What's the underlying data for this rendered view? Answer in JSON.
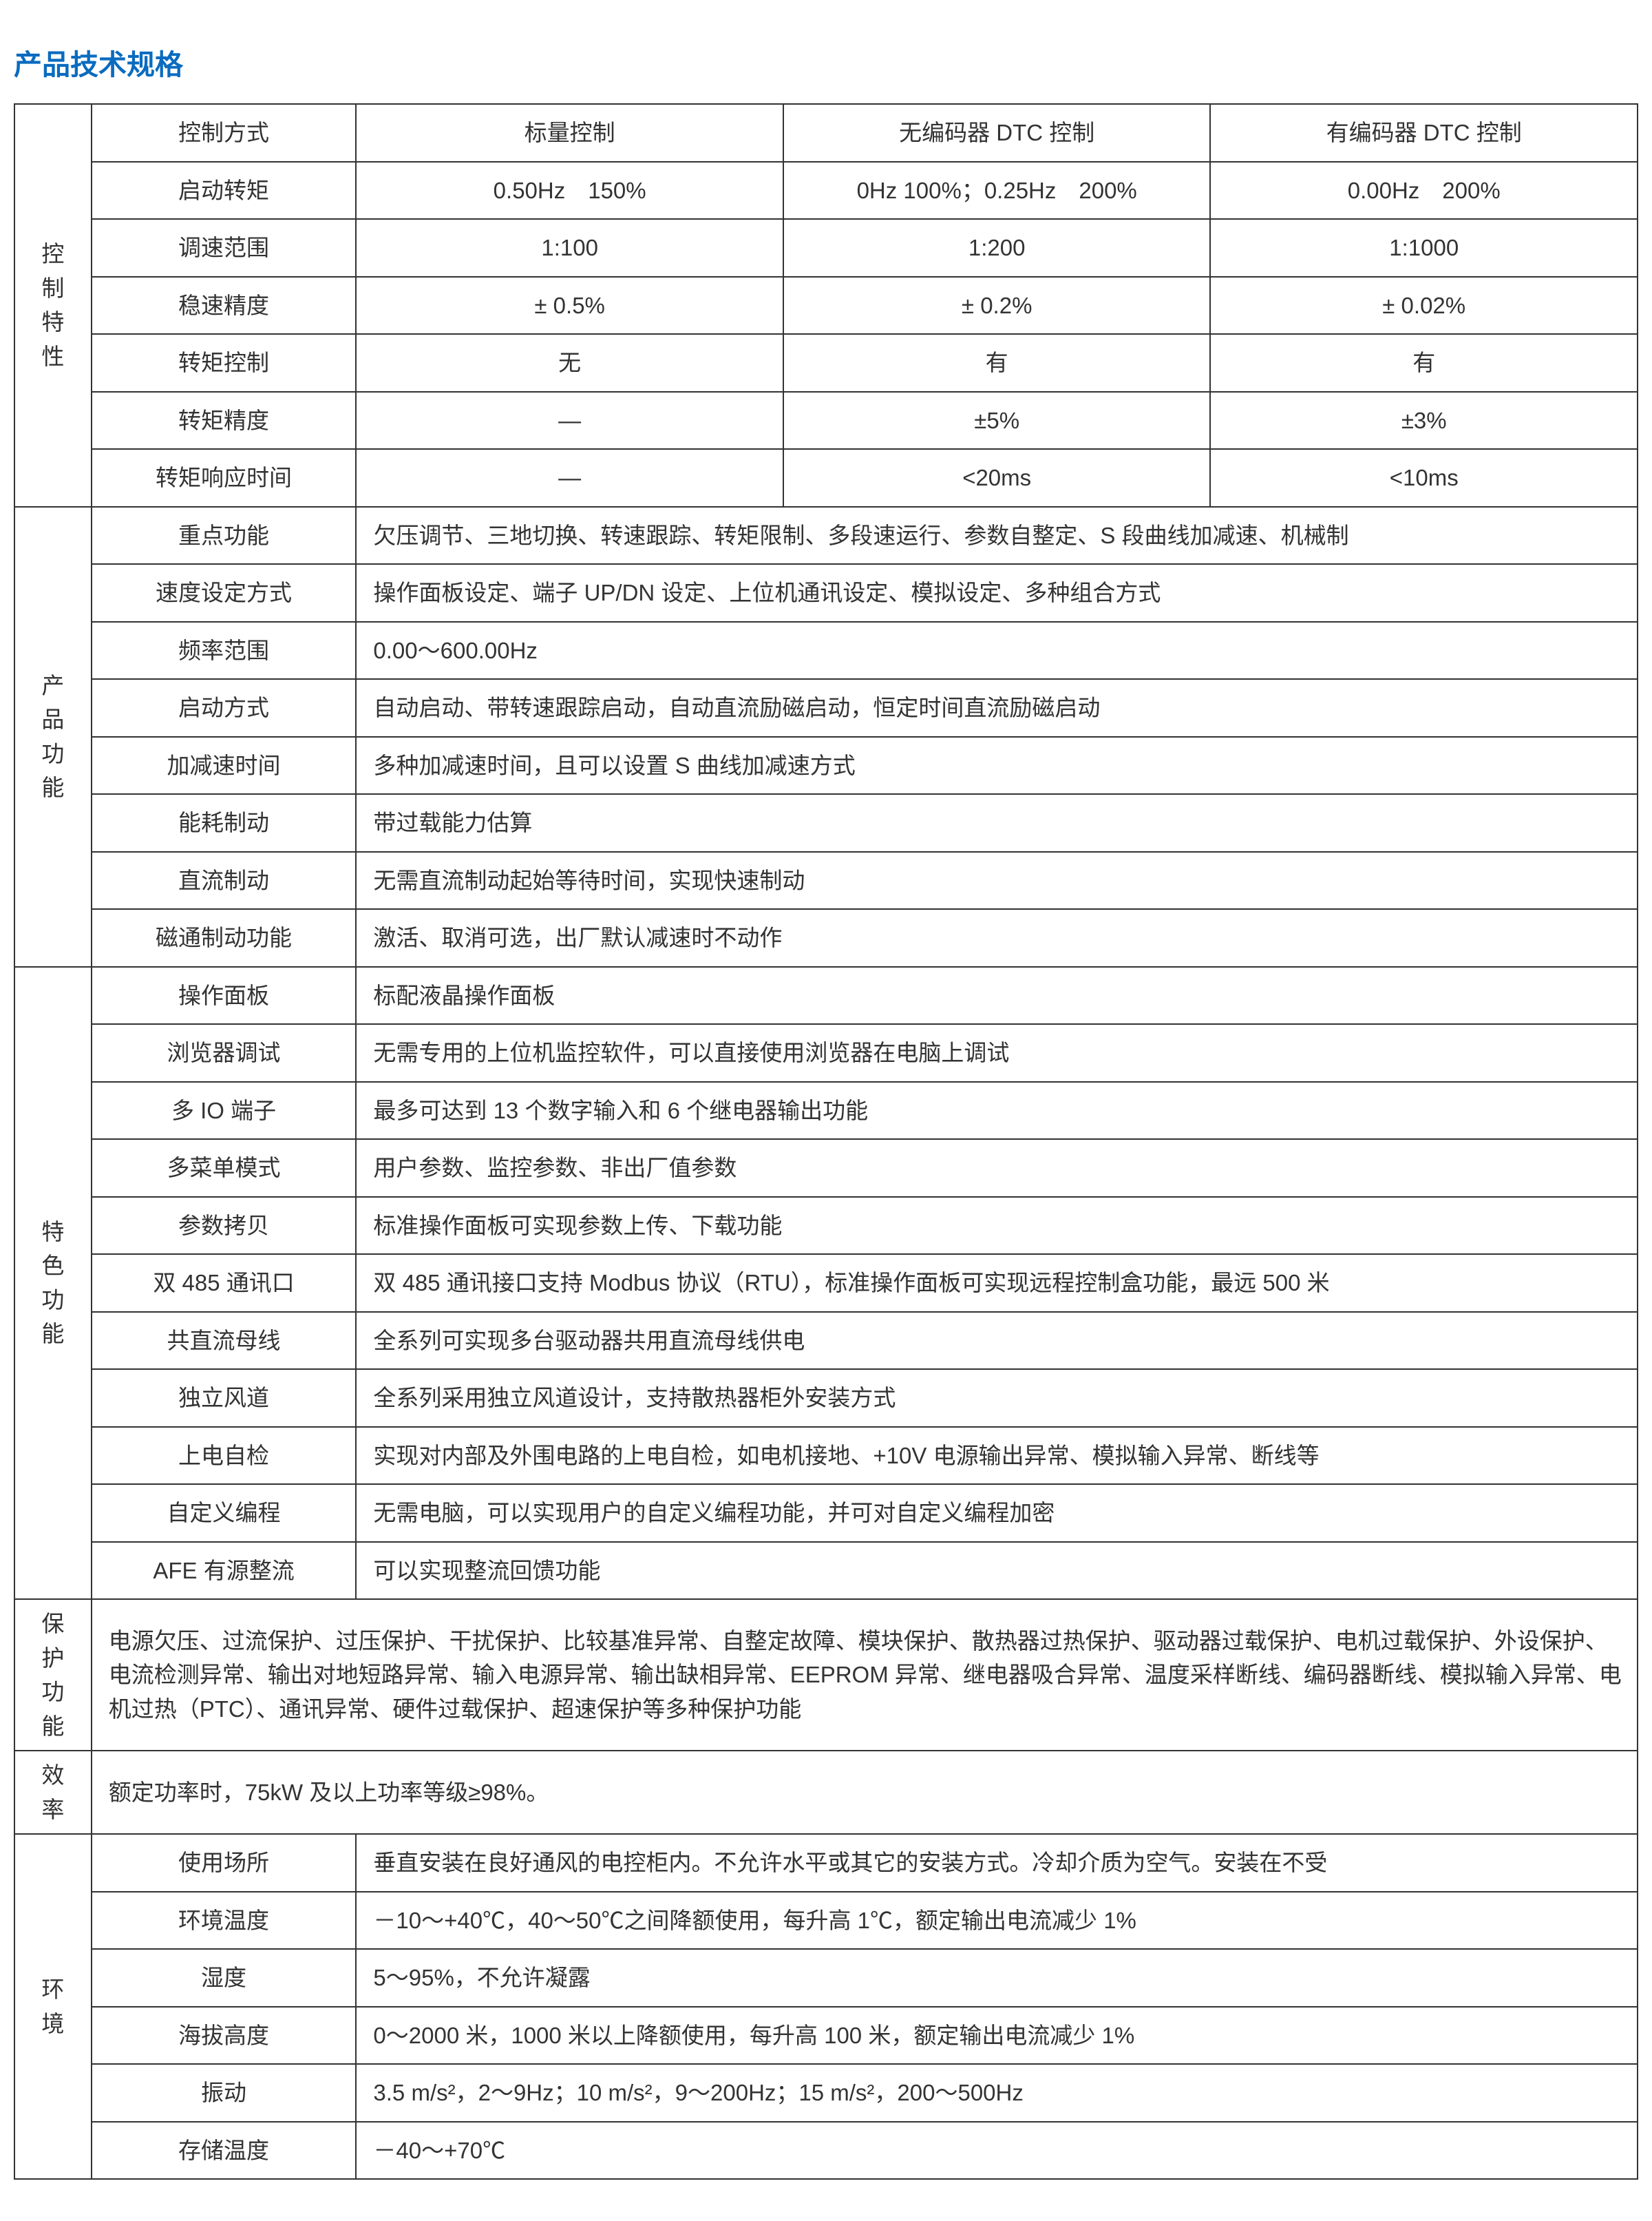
{
  "title": "产品技术规格",
  "title_color": "#0a6bbf",
  "border_color": "#333333",
  "text_color": "#333333",
  "background_color": "#ffffff",
  "control": {
    "category": "控制特性",
    "rows": [
      {
        "label": "控制方式",
        "cols": [
          "标量控制",
          "无编码器 DTC 控制",
          "有编码器 DTC 控制"
        ]
      },
      {
        "label": "启动转矩",
        "cols": [
          "0.50Hz　150%",
          "0Hz 100%；0.25Hz　200%",
          "0.00Hz　200%"
        ]
      },
      {
        "label": "调速范围",
        "cols": [
          "1:100",
          "1:200",
          "1:1000"
        ]
      },
      {
        "label": "稳速精度",
        "cols": [
          "± 0.5%",
          "± 0.2%",
          "± 0.02%"
        ]
      },
      {
        "label": "转矩控制",
        "cols": [
          "无",
          "有",
          "有"
        ]
      },
      {
        "label": "转矩精度",
        "cols": [
          "—",
          "±5%",
          "±3%"
        ]
      },
      {
        "label": "转矩响应时间",
        "cols": [
          "—",
          "<20ms",
          "<10ms"
        ]
      }
    ]
  },
  "product": {
    "category": "产品功能",
    "rows": [
      {
        "label": "重点功能",
        "val": "欠压调节、三地切换、转速跟踪、转矩限制、多段速运行、参数自整定、S 段曲线加减速、机械制"
      },
      {
        "label": "速度设定方式",
        "val": "操作面板设定、端子 UP/DN 设定、上位机通讯设定、模拟设定、多种组合方式"
      },
      {
        "label": "频率范围",
        "val": "0.00～600.00Hz"
      },
      {
        "label": "启动方式",
        "val": "自动启动、带转速跟踪启动，自动直流励磁启动，恒定时间直流励磁启动"
      },
      {
        "label": "加减速时间",
        "val": "多种加减速时间，且可以设置 S 曲线加减速方式"
      },
      {
        "label": "能耗制动",
        "val": "带过载能力估算"
      },
      {
        "label": "直流制动",
        "val": "无需直流制动起始等待时间，实现快速制动"
      },
      {
        "label": "磁通制动功能",
        "val": "激活、取消可选，出厂默认减速时不动作"
      }
    ]
  },
  "feature": {
    "category": "特色功能",
    "rows": [
      {
        "label": "操作面板",
        "val": "标配液晶操作面板"
      },
      {
        "label": "浏览器调试",
        "val": "无需专用的上位机监控软件，可以直接使用浏览器在电脑上调试"
      },
      {
        "label": "多 IO 端子",
        "val": "最多可达到 13 个数字输入和 6 个继电器输出功能"
      },
      {
        "label": "多菜单模式",
        "val": "用户参数、监控参数、非出厂值参数"
      },
      {
        "label": "参数拷贝",
        "val": "标准操作面板可实现参数上传、下载功能"
      },
      {
        "label": "双 485 通讯口",
        "val": "双 485 通讯接口支持 Modbus 协议（RTU），标准操作面板可实现远程控制盒功能，最远 500 米"
      },
      {
        "label": "共直流母线",
        "val": "全系列可实现多台驱动器共用直流母线供电"
      },
      {
        "label": "独立风道",
        "val": "全系列采用独立风道设计，支持散热器柜外安装方式"
      },
      {
        "label": "上电自检",
        "val": "实现对内部及外围电路的上电自检，如电机接地、+10V 电源输出异常、模拟输入异常、断线等"
      },
      {
        "label": "自定义编程",
        "val": "无需电脑，可以实现用户的自定义编程功能，并可对自定义编程加密"
      },
      {
        "label": "AFE 有源整流",
        "val": "可以实现整流回馈功能"
      }
    ]
  },
  "protection": {
    "category": "保护功能",
    "val": "电源欠压、过流保护、过压保护、干扰保护、比较基准异常、自整定故障、模块保护、散热器过热保护、驱动器过载保护、电机过载保护、外设保护、电流检测异常、输出对地短路异常、输入电源异常、输出缺相异常、EEPROM 异常、继电器吸合异常、温度采样断线、编码器断线、模拟输入异常、电机过热（PTC）、通讯异常、硬件过载保护、超速保护等多种保护功能"
  },
  "efficiency": {
    "category": "效率",
    "val": "额定功率时，75kW 及以上功率等级≥98%。"
  },
  "environment": {
    "category": "环境",
    "rows": [
      {
        "label": "使用场所",
        "val": "垂直安装在良好通风的电控柜内。不允许水平或其它的安装方式。冷却介质为空气。安装在不受"
      },
      {
        "label": "环境温度",
        "val": "－10～+40℃，40～50℃之间降额使用，每升高 1℃，额定输出电流减少 1%"
      },
      {
        "label": "湿度",
        "val": "5～95%，不允许凝露"
      },
      {
        "label": "海拔高度",
        "val": "0～2000 米，1000 米以上降额使用，每升高 100 米，额定输出电流减少 1%"
      },
      {
        "label": "振动",
        "val": "3.5 m/s²，2～9Hz；10 m/s²，9～200Hz；15 m/s²，200～500Hz"
      },
      {
        "label": "存储温度",
        "val": "－40～+70℃"
      }
    ]
  }
}
